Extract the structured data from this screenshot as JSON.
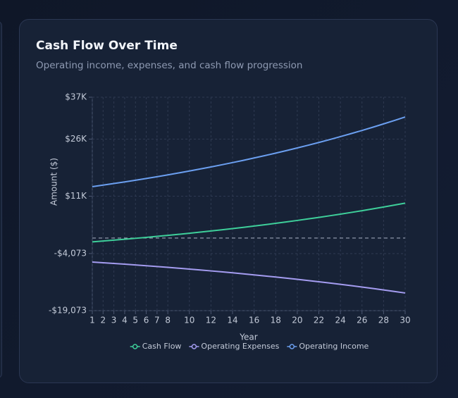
{
  "chart_data": {
    "type": "line",
    "title": "Cash Flow Over Time",
    "subtitle": "Operating income, expenses, and cash flow progression",
    "x_label": "Year",
    "y_label": "Amount ($)",
    "x": [
      1,
      2,
      3,
      4,
      5,
      6,
      7,
      8,
      9,
      10,
      11,
      12,
      13,
      14,
      15,
      16,
      17,
      18,
      19,
      20,
      21,
      22,
      23,
      24,
      25,
      26,
      27,
      28,
      29,
      30
    ],
    "xlim": [
      1,
      30
    ],
    "xticks": [
      1,
      2,
      3,
      4,
      5,
      6,
      7,
      8,
      10,
      12,
      14,
      16,
      18,
      20,
      22,
      24,
      26,
      28,
      30
    ],
    "ylim": [
      -19073,
      37000
    ],
    "yticks": [
      {
        "value": -19073,
        "label": "-$19,073"
      },
      {
        "value": -4073,
        "label": "-$4,073"
      },
      {
        "value": 11000,
        "label": "$11K"
      },
      {
        "value": 26000,
        "label": "$26K"
      },
      {
        "value": 37000,
        "label": "$37K"
      }
    ],
    "reference_line": 0,
    "grid": true,
    "legend": "bottom",
    "series": [
      {
        "name": "Cash Flow",
        "color": "#3ecf9a",
        "values": [
          -1000,
          -778,
          -548,
          -313,
          -69,
          183,
          441,
          708,
          983,
          1266,
          1558,
          1859,
          2169,
          2489,
          2819,
          3159,
          3509,
          3870,
          4242,
          4627,
          5022,
          5430,
          5850,
          6284,
          6731,
          7191,
          7666,
          8155,
          8659,
          9179
        ]
      },
      {
        "name": "Operating Expenses",
        "color": "#a49cf0",
        "values": [
          -6300,
          -6483,
          -6670,
          -6864,
          -7063,
          -7268,
          -7479,
          -7696,
          -7919,
          -8149,
          -8385,
          -8628,
          -8879,
          -9136,
          -9401,
          -9674,
          -9954,
          -10243,
          -10540,
          -10845,
          -11160,
          -11484,
          -11817,
          -12160,
          -12512,
          -12875,
          -13248,
          -13633,
          -14028,
          -14435
        ]
      },
      {
        "name": "Operating Income",
        "color": "#6b9ff0",
        "values": [
          13500,
          13905,
          14322,
          14751,
          15194,
          15651,
          16120,
          16604,
          17102,
          17615,
          18143,
          18687,
          19248,
          19825,
          20420,
          21033,
          21663,
          22313,
          22982,
          23672,
          24382,
          25114,
          25867,
          26644,
          27443,
          28266,
          29114,
          29988,
          30887,
          31814
        ]
      }
    ]
  }
}
